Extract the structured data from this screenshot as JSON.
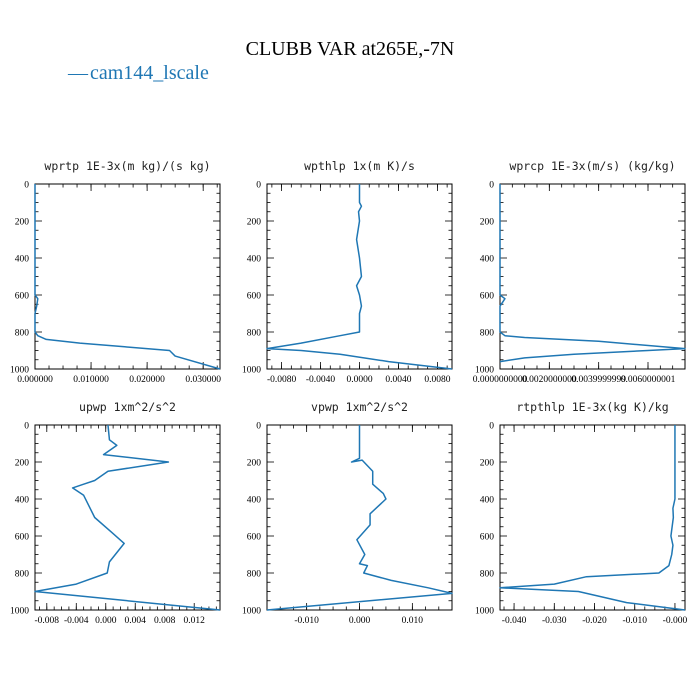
{
  "figure": {
    "title": "CLUBB VAR at265E,-7N",
    "legend": {
      "label": "cam144_lscale",
      "symbol": "—",
      "color": "#1f77b4"
    }
  },
  "chart_data": [
    {
      "type": "line",
      "title": "wprtp  1E-3x(m kg)/(s kg)",
      "xlim": [
        0,
        0.033
      ],
      "ylim": [
        1000,
        0
      ],
      "xticks": [
        0.0,
        0.01,
        0.02,
        0.03
      ],
      "xtick_labels": [
        "0.000000",
        "0.010000",
        "0.020000",
        "0.030000"
      ],
      "yticks": [
        0,
        200,
        400,
        600,
        800,
        1000
      ],
      "ytick_labels": [
        "0",
        "200",
        "400",
        "600",
        "800",
        "1000"
      ],
      "series": [
        {
          "color": "#1f77b4",
          "x": [
            0,
            0,
            0,
            0,
            0.0005,
            0.0003,
            0,
            0,
            0.0005,
            0.002,
            0.008,
            0.016,
            0.024,
            0.025,
            0.033
          ],
          "y": [
            0,
            200,
            400,
            600,
            620,
            660,
            700,
            800,
            820,
            840,
            860,
            880,
            900,
            930,
            1000
          ]
        }
      ]
    },
    {
      "type": "line",
      "title": "wpthlp  1x(m K)/s",
      "xlim": [
        -0.0095,
        0.0095
      ],
      "ylim": [
        1000,
        0
      ],
      "xticks": [
        -0.008,
        -0.004,
        0.0,
        0.004,
        0.008
      ],
      "xtick_labels": [
        "-0.0080",
        "-0.0040",
        "0.0000",
        "0.0040",
        "0.0080"
      ],
      "yticks": [
        0,
        200,
        400,
        600,
        800,
        1000
      ],
      "ytick_labels": [
        "0",
        "200",
        "400",
        "600",
        "800",
        "1000"
      ],
      "series": [
        {
          "color": "#1f77b4",
          "x": [
            0,
            0,
            0.0002,
            -0.0001,
            0,
            -0.0003,
            0,
            0.0002,
            -0.0003,
            0,
            0.0002,
            0,
            0,
            -0.002,
            -0.006,
            -0.0095,
            -0.006,
            -0.002,
            0.003,
            0.0095
          ],
          "y": [
            0,
            100,
            120,
            150,
            200,
            300,
            400,
            500,
            550,
            600,
            660,
            700,
            800,
            820,
            860,
            890,
            900,
            920,
            960,
            1000
          ]
        }
      ]
    },
    {
      "type": "line",
      "title": "wprcp  1E-3x(m/s) (kg/kg)",
      "xlim": [
        0,
        0.0075
      ],
      "ylim": [
        1000,
        0
      ],
      "xticks": [
        0.0,
        0.002,
        0.004,
        0.006
      ],
      "xtick_labels": [
        "0.0000000000",
        "0.0020000000",
        "0.0039999999",
        "0.0060000001"
      ],
      "yticks": [
        0,
        200,
        400,
        600,
        800,
        1000
      ],
      "ytick_labels": [
        "0",
        "200",
        "400",
        "600",
        "800",
        "1000"
      ],
      "series": [
        {
          "color": "#1f77b4",
          "x": [
            0,
            0,
            0,
            0,
            0.0002,
            0.0001,
            0,
            0,
            0.0002,
            0.001,
            0.004,
            0.0075,
            0.006,
            0.003,
            0.001,
            0
          ],
          "y": [
            0,
            200,
            400,
            600,
            620,
            640,
            660,
            800,
            820,
            830,
            850,
            890,
            900,
            920,
            940,
            960
          ]
        }
      ]
    },
    {
      "type": "line",
      "title": "upwp  1xm^2/s^2",
      "xlim": [
        -0.0096,
        0.0155
      ],
      "ylim": [
        1000,
        0
      ],
      "xticks": [
        -0.008,
        -0.004,
        0.0,
        0.004,
        0.008,
        0.012
      ],
      "xtick_labels": [
        "-0.008",
        "-0.004",
        "0.000",
        "0.004",
        "0.008",
        "0.012"
      ],
      "yticks": [
        0,
        200,
        400,
        600,
        800,
        1000
      ],
      "ytick_labels": [
        "0",
        "200",
        "400",
        "600",
        "800",
        "1000"
      ],
      "series": [
        {
          "color": "#1f77b4",
          "x": [
            0.0003,
            0.0005,
            0.0015,
            -0.0003,
            0.0085,
            0.0003,
            -0.0015,
            -0.003,
            -0.0045,
            -0.003,
            -0.0025,
            -0.0015,
            0.0008,
            0.0025,
            0.0005,
            0.0002,
            -0.004,
            -0.0096,
            0.0155
          ],
          "y": [
            0,
            80,
            110,
            160,
            200,
            250,
            300,
            320,
            340,
            380,
            420,
            500,
            580,
            640,
            740,
            800,
            860,
            900,
            1000
          ]
        }
      ]
    },
    {
      "type": "line",
      "title": "vpwp  1xm^2/s^2",
      "xlim": [
        -0.0175,
        0.0175
      ],
      "ylim": [
        1000,
        0
      ],
      "xticks": [
        -0.01,
        0.0,
        0.01
      ],
      "xtick_labels": [
        "-0.010",
        "0.000",
        "0.010"
      ],
      "yticks": [
        0,
        200,
        400,
        600,
        800,
        1000
      ],
      "ytick_labels": [
        "0",
        "200",
        "400",
        "600",
        "800",
        "1000"
      ],
      "series": [
        {
          "color": "#1f77b4",
          "x": [
            0,
            0,
            0,
            -0.0015,
            0.0005,
            0.0025,
            0.0025,
            0.0045,
            0.005,
            0.002,
            0.002,
            -0.0005,
            0.001,
            0,
            0.0015,
            0.0008,
            0.006,
            0.013,
            0.0175,
            -0.0175
          ],
          "y": [
            0,
            100,
            180,
            200,
            190,
            250,
            320,
            370,
            400,
            480,
            540,
            620,
            700,
            750,
            760,
            800,
            840,
            880,
            910,
            1000
          ]
        }
      ]
    },
    {
      "type": "line",
      "title": "rtpthlp  1E-3x(kg K)/kg",
      "xlim": [
        -0.0435,
        0.0025
      ],
      "ylim": [
        1000,
        0
      ],
      "xticks": [
        -0.04,
        -0.03,
        -0.02,
        -0.01,
        0.0
      ],
      "xtick_labels": [
        "-0.040",
        "-0.030",
        "-0.020",
        "-0.010",
        "-0.000"
      ],
      "yticks": [
        0,
        200,
        400,
        600,
        800,
        1000
      ],
      "ytick_labels": [
        "0",
        "200",
        "400",
        "600",
        "800",
        "1000"
      ],
      "series": [
        {
          "color": "#1f77b4",
          "x": [
            0,
            0,
            0,
            -0.0005,
            -0.0004,
            -0.001,
            -0.0005,
            -0.0008,
            -0.0015,
            -0.004,
            -0.022,
            -0.03,
            -0.0435,
            -0.024,
            -0.012,
            0.0025
          ],
          "y": [
            0,
            200,
            400,
            450,
            500,
            600,
            650,
            700,
            760,
            800,
            820,
            860,
            880,
            900,
            960,
            1000
          ]
        }
      ]
    }
  ]
}
